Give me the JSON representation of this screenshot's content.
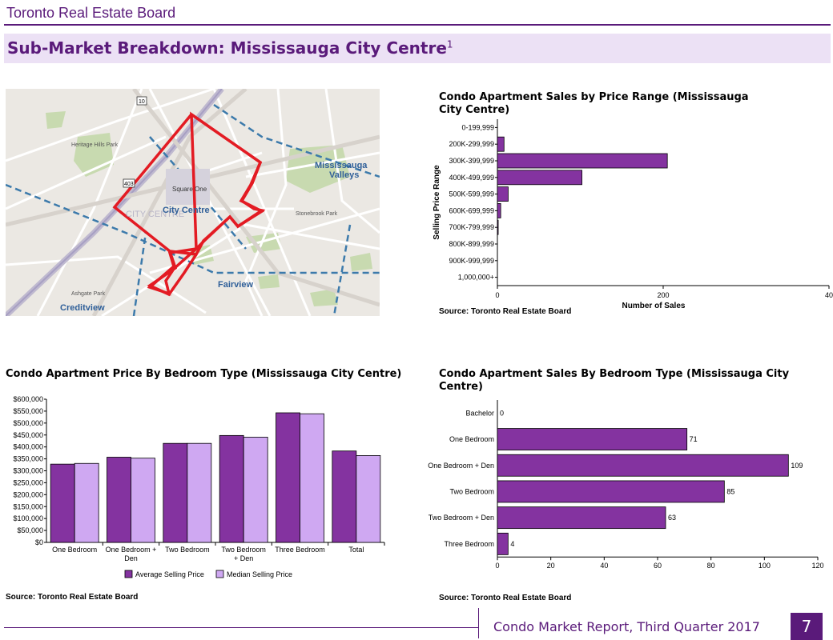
{
  "header": {
    "title": "Toronto Real Estate Board"
  },
  "banner": {
    "title": "Sub-Market Breakdown: Mississauga City Centre",
    "footnote": "1"
  },
  "map": {
    "labels": {
      "mississauga_valleys_1": "Mississauga",
      "mississauga_valleys_2": "Valleys",
      "city_centre": "City Centre",
      "city_centre_bg": "CITY CENTRE",
      "square_one": "Square One",
      "fairview": "Fairview",
      "creditview": "Creditview",
      "heritage_hills": "Heritage Hills Park",
      "stonebrook": "Stonebrook Park",
      "ashgate": "Ashgate Park",
      "route_10": "10",
      "route_403": "403"
    }
  },
  "chart_price_range": {
    "title": "Condo Apartment Sales by Price Range (Mississauga City Centre)",
    "source": "Source: Toronto Real Estate Board"
  },
  "chart_bedroom_price": {
    "title": "Condo Apartment Price By Bedroom Type (Mississauga City Centre)",
    "source": "Source: Toronto Real Estate Board"
  },
  "chart_bedroom_sales": {
    "title": "Condo Apartment Sales By Bedroom Type (Mississauga City Centre)",
    "source": "Source: Toronto Real Estate Board"
  },
  "footer": {
    "text": "Condo Market Report, Third Quarter 2017",
    "page": "7"
  },
  "colors": {
    "dark_purple": "#8433a0",
    "light_purple": "#cfa8f2",
    "brand": "#5a1a7a"
  },
  "chart_data": [
    {
      "id": "price_range",
      "type": "bar",
      "orientation": "horizontal",
      "title": "Condo Apartment Sales by Price Range (Mississauga City Centre)",
      "xlabel": "Number of Sales",
      "ylabel": "Selling Price Range",
      "categories": [
        "0-199,999",
        "200K-299,999",
        "300K-399,999",
        "400K-499,999",
        "500K-599,999",
        "600K-699,999",
        "700K-799,999",
        "800K-899,999",
        "900K-999,999",
        "1,000,000+"
      ],
      "values": [
        0,
        8,
        205,
        102,
        13,
        4,
        1,
        0,
        0,
        0
      ],
      "xlim": [
        0,
        400
      ],
      "xticks": [
        "0",
        "200",
        "40"
      ]
    },
    {
      "id": "bedroom_price",
      "type": "bar",
      "orientation": "vertical",
      "title": "Condo Apartment Price By Bedroom Type (Mississauga City Centre)",
      "categories": [
        "One Bedroom",
        "One Bedroom + Den",
        "Two Bedroom",
        "Two Bedroom + Den",
        "Three Bedroom",
        "Total"
      ],
      "series": [
        {
          "name": "Average Selling Price",
          "values": [
            328000,
            357000,
            415000,
            448000,
            543000,
            383000
          ]
        },
        {
          "name": "Median Selling Price",
          "values": [
            331000,
            353000,
            415000,
            441000,
            539000,
            364000
          ]
        }
      ],
      "ylim": [
        0,
        600000
      ],
      "yticks": [
        "$0",
        "$50,000",
        "$100,000",
        "$150,000",
        "$200,000",
        "$250,000",
        "$300,000",
        "$350,000",
        "$400,000",
        "$450,000",
        "$500,000",
        "$550,000",
        "$600,000"
      ],
      "legend": "bottom"
    },
    {
      "id": "bedroom_sales",
      "type": "bar",
      "orientation": "horizontal",
      "title": "Condo Apartment Sales By Bedroom Type (Mississauga City Centre)",
      "categories": [
        "Bachelor",
        "One Bedroom",
        "One Bedroom + Den",
        "Two Bedroom",
        "Two Bedroom + Den",
        "Three Bedroom"
      ],
      "values": [
        0,
        71,
        109,
        85,
        63,
        4
      ],
      "xlim": [
        0,
        120
      ],
      "xticks": [
        "0",
        "20",
        "40",
        "60",
        "80",
        "100",
        "120"
      ]
    }
  ]
}
